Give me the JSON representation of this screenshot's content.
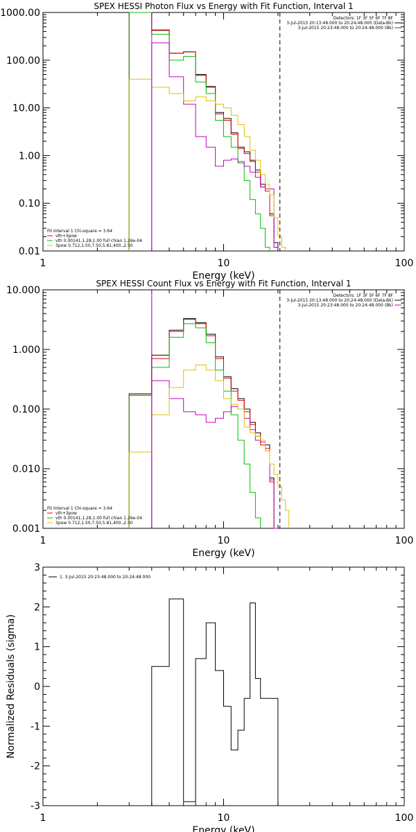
{
  "chart_data": [
    {
      "type": "line",
      "title": "SPEX HESSI Photon Flux vs Energy with Fit Function, Interval 1",
      "xlabel": "Energy (keV)",
      "ylabel": "",
      "xscale": "log",
      "yscale": "log",
      "xlim": [
        1,
        100
      ],
      "ylim": [
        0.01,
        1000
      ],
      "xticks": [
        "1",
        "10",
        "100"
      ],
      "yticks": [
        "0.01",
        "0.10",
        "1.00",
        "10.00",
        "100.00",
        "1000.00"
      ],
      "ytick_values": [
        0.01,
        0.1,
        1,
        10,
        100,
        1000
      ],
      "vlines": [
        {
          "x": 4.0,
          "style": "solid",
          "color": "#c000c0"
        },
        {
          "x": 20.5,
          "style": "dashed",
          "color": "#000000"
        }
      ],
      "bin_edges": [
        3,
        4,
        5,
        6,
        7,
        8,
        9,
        10,
        11,
        12,
        13,
        14,
        15,
        16,
        17,
        18,
        19,
        20,
        21,
        22,
        23,
        24,
        25,
        26,
        27,
        28,
        30
      ],
      "series": [
        {
          "color": "#000000",
          "values": [
            1000,
            430,
            140,
            150,
            50,
            28,
            8,
            6,
            3,
            1.5,
            1.2,
            0.8,
            0.5,
            0.25,
            0.2,
            0.06,
            0.015,
            null,
            null,
            null,
            null,
            null,
            null,
            null,
            null,
            null
          ]
        },
        {
          "color": "#e00000",
          "values": [
            1000,
            420,
            140,
            150,
            48,
            27,
            7.5,
            5.5,
            2.8,
            1.4,
            1.1,
            0.75,
            0.45,
            0.22,
            0.18,
            0.055,
            0.012,
            null,
            null,
            null,
            null,
            null,
            null,
            null,
            null,
            null
          ]
        },
        {
          "color": "#00c000",
          "values": [
            1000,
            350,
            100,
            120,
            35,
            20,
            5.5,
            2.5,
            1.5,
            0.7,
            0.3,
            0.12,
            0.06,
            0.03,
            0.012,
            null,
            null,
            null,
            null,
            null,
            null,
            null,
            null,
            null,
            null,
            null
          ]
        },
        {
          "color": "#c000c0",
          "values": [
            null,
            230,
            45,
            12,
            2.5,
            1.5,
            0.6,
            0.8,
            0.85,
            0.75,
            0.6,
            0.45,
            0.35,
            0.22,
            0.2,
            0.2,
            0.012,
            null,
            null,
            null,
            null,
            null,
            null,
            null,
            null,
            null
          ]
        },
        {
          "color": "#e0c000",
          "values": [
            40,
            27,
            20,
            14,
            17,
            14,
            12,
            10,
            7,
            4.5,
            2.5,
            1.3,
            0.8,
            0.4,
            0.25,
            0.15,
            0.05,
            0.02,
            0.012,
            null,
            null,
            null,
            null,
            null,
            null,
            null
          ]
        }
      ],
      "legend_top": [
        {
          "text": "Detectors: 1F 3F 5F 6F 7F 8F",
          "color": ""
        },
        {
          "text": "3-Jul-2015 20:13:48.000 to 20:24:48.000 (Data-Bk)",
          "color": "#000000"
        },
        {
          "text": "3-Jul-2015 20:23:48.000 to 20:24:48.000 (Bk)",
          "color": "#c000c0"
        }
      ],
      "legend_bottom": [
        {
          "text": "Fit Interval 1    Chi-square = 3.64",
          "color": ""
        },
        {
          "text": "vth+3pow",
          "color": "#e00000"
        },
        {
          "text": "vth 0.00141,1.28,1.00  full chian 1.26e-04",
          "color": "#00c000"
        },
        {
          "text": "3pow 0.712,1.50,7.50,5.81,400.,2.50",
          "color": "#e0c000"
        }
      ]
    },
    {
      "type": "line",
      "title": "SPEX HESSI Count Flux vs Energy with Fit Function, Interval 1",
      "xlabel": "Energy (keV)",
      "ylabel": "",
      "xscale": "log",
      "yscale": "log",
      "xlim": [
        1,
        100
      ],
      "ylim": [
        0.001,
        10
      ],
      "xticks": [
        "1",
        "10",
        "100"
      ],
      "yticks": [
        "0.001",
        "0.010",
        "0.100",
        "1.000",
        "10.000"
      ],
      "ytick_values": [
        0.001,
        0.01,
        0.1,
        1,
        10
      ],
      "vlines": [
        {
          "x": 4.0,
          "style": "dotted",
          "color": "#000000"
        },
        {
          "x": 4.0,
          "style": "solid",
          "color": "#c000c0"
        },
        {
          "x": 20.5,
          "style": "dashed",
          "color": "#000000"
        }
      ],
      "bin_edges": [
        3,
        4,
        5,
        6,
        7,
        8,
        9,
        10,
        11,
        12,
        13,
        14,
        15,
        16,
        17,
        18,
        19,
        20,
        21,
        22,
        23,
        24,
        25,
        26,
        27,
        28,
        30
      ],
      "series": [
        {
          "color": "#000000",
          "values": [
            0.18,
            0.8,
            2.1,
            3.3,
            2.8,
            1.8,
            0.75,
            0.35,
            0.22,
            0.15,
            0.1,
            0.06,
            0.04,
            0.028,
            0.025,
            0.007,
            null,
            null,
            null,
            null,
            null,
            null,
            null,
            null,
            null,
            null
          ]
        },
        {
          "color": "#e00000",
          "values": [
            0.17,
            0.7,
            2.0,
            3.2,
            2.7,
            1.7,
            0.7,
            0.33,
            0.2,
            0.14,
            0.09,
            0.055,
            0.035,
            0.025,
            0.022,
            0.0065,
            null,
            null,
            null,
            null,
            null,
            null,
            null,
            null,
            null,
            null
          ]
        },
        {
          "color": "#00c000",
          "values": [
            0.17,
            0.5,
            1.6,
            2.7,
            2.3,
            1.3,
            0.45,
            0.2,
            0.08,
            0.03,
            0.012,
            0.004,
            0.0015,
            null,
            null,
            null,
            null,
            null,
            null,
            null,
            null,
            null,
            null,
            null,
            null,
            null
          ]
        },
        {
          "color": "#c000c0",
          "values": [
            null,
            0.3,
            0.15,
            0.09,
            0.08,
            0.06,
            0.07,
            0.09,
            0.11,
            0.1,
            0.07,
            0.045,
            0.03,
            0.028,
            0.02,
            0.006,
            0.001,
            null,
            null,
            null,
            null,
            null,
            null,
            null,
            null,
            null
          ]
        },
        {
          "color": "#e0c000",
          "values": [
            0.019,
            0.08,
            0.23,
            0.45,
            0.55,
            0.45,
            0.3,
            0.15,
            0.12,
            0.1,
            0.05,
            0.04,
            0.035,
            0.03,
            0.02,
            0.012,
            0.008,
            0.005,
            0.003,
            0.002,
            null,
            null,
            null,
            null,
            null,
            null
          ]
        }
      ],
      "legend_top": [
        {
          "text": "Detectors: 1F 3F 5F 6F 7F 8F",
          "color": ""
        },
        {
          "text": "3-Jul-2015 20:13:48.000 to 20:24:48.000 (Data-Bk)",
          "color": "#000000"
        },
        {
          "text": "3-Jul-2015 20:23:48.000 to 20:24:48.000 (Bk)",
          "color": "#c000c0"
        }
      ],
      "legend_bottom": [
        {
          "text": "Fit Interval 1    Chi-square = 3.64",
          "color": ""
        },
        {
          "text": "vth+3pow",
          "color": "#e00000"
        },
        {
          "text": "vth 0.00141,1.28,1.00  full chian 1.26e-04",
          "color": "#00c000"
        },
        {
          "text": "3pow 0.712,1.50,7.50,5.81,400.,2.50",
          "color": "#e0c000"
        }
      ]
    },
    {
      "type": "line",
      "title": "",
      "xlabel": "Energy (keV)",
      "ylabel": "Normalized Residuals (sigma)",
      "xscale": "log",
      "yscale": "linear",
      "xlim": [
        1,
        100
      ],
      "ylim": [
        -3,
        3
      ],
      "xticks": [
        "1",
        "10",
        "100"
      ],
      "yticks": [
        "-3",
        "-2",
        "-1",
        "0",
        "1",
        "2",
        "3"
      ],
      "ytick_values": [
        -3,
        -2,
        -1,
        0,
        1,
        2,
        3
      ],
      "bin_edges": [
        4,
        5,
        6,
        7,
        8,
        9,
        10,
        11,
        12,
        13,
        14,
        15,
        16,
        17,
        18,
        19,
        20
      ],
      "series": [
        {
          "name": "1.  3-Jul-2015 20:23:48.000 to 20:24:48.000",
          "color": "#000000",
          "values": [
            0.5,
            2.2,
            -2.9,
            0.7,
            1.6,
            0.4,
            -0.5,
            -1.6,
            -1.1,
            -0.3,
            2.1,
            0.2,
            -0.3,
            -0.3,
            -0.3,
            -0.3
          ]
        }
      ],
      "legend_top": [
        {
          "text": "1.  3-Jul-2015 20:23:48.000 to 20:24:48.000",
          "color": "#000000"
        }
      ]
    }
  ]
}
